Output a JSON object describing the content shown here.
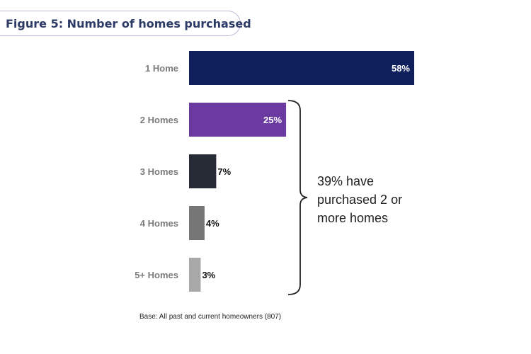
{
  "title": "Figure 5: Number of homes purchased",
  "annotation": "39% have purchased 2 or more homes",
  "base_note": "Base: All past and current homeowners (807)",
  "chart_data": {
    "type": "bar",
    "orientation": "horizontal",
    "categories": [
      "1 Home",
      "2 Homes",
      "3 Homes",
      "4 Homes",
      "5+ Homes"
    ],
    "values": [
      58,
      25,
      7,
      4,
      3
    ],
    "labels": [
      "58%",
      "25%",
      "7%",
      "4%",
      "3%"
    ],
    "colors": [
      "#0e1f5c",
      "#6a3aa1",
      "#262b36",
      "#767676",
      "#a8a8a8"
    ],
    "label_position": [
      "inside",
      "inside",
      "outside",
      "outside",
      "outside"
    ],
    "label_colors": [
      "#ffffff",
      "#ffffff",
      "#111111",
      "#111111",
      "#111111"
    ],
    "xlim": [
      0,
      58
    ],
    "title": "",
    "xlabel": "",
    "ylabel": "",
    "grid": false
  }
}
